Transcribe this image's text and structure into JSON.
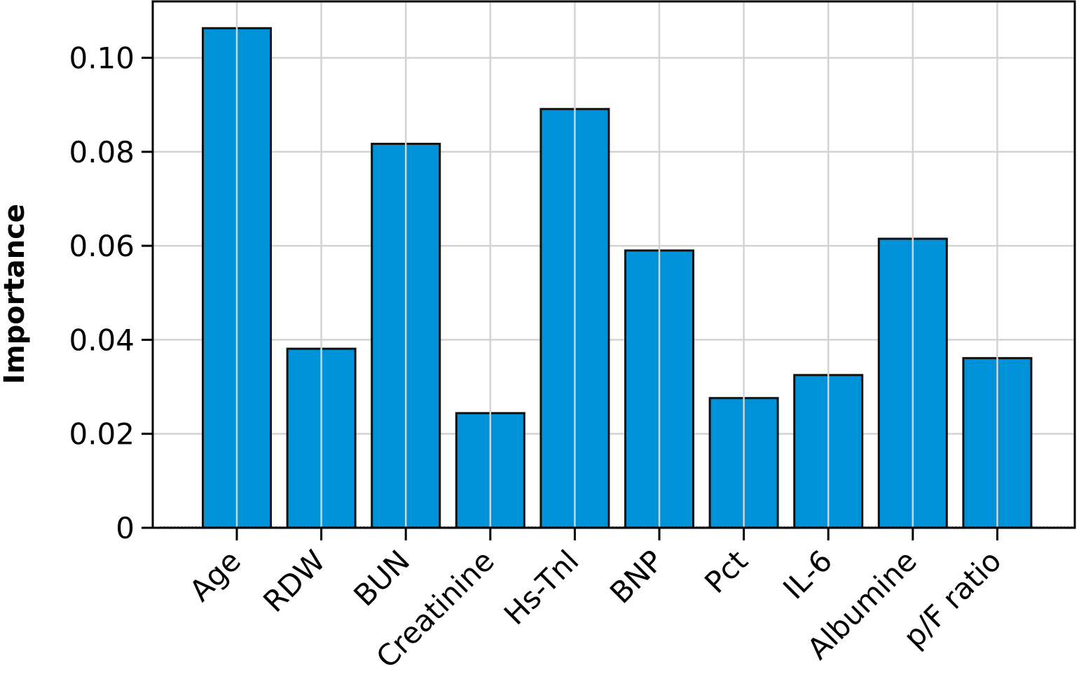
{
  "chart_data": {
    "type": "bar",
    "title": "",
    "xlabel": "",
    "ylabel": "Importance",
    "categories": [
      "Age",
      "RDW",
      "BUN",
      "Creatinine",
      "Hs-Tnl",
      "BNP",
      "Pct",
      "IL-6",
      "Albumine",
      "p/F ratio"
    ],
    "values": [
      0.1063,
      0.0381,
      0.0817,
      0.0244,
      0.0891,
      0.059,
      0.0276,
      0.0325,
      0.0615,
      0.0361
    ],
    "ylim": [
      0,
      0.112
    ],
    "yticks": [
      0,
      0.02,
      0.04,
      0.06,
      0.08,
      0.1
    ],
    "ytick_labels": [
      "0",
      "0.02",
      "0.04",
      "0.06",
      "0.08",
      "0.10"
    ],
    "grid": true,
    "bar_color": "#0092d9",
    "edge_color": "#111111"
  }
}
